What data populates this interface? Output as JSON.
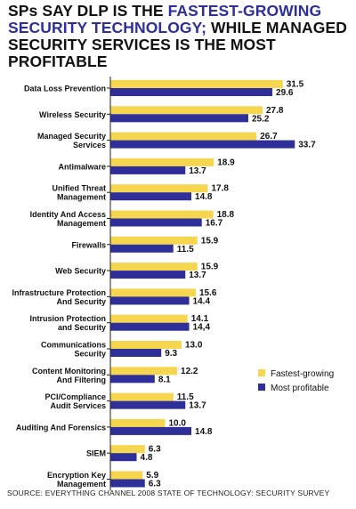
{
  "title": {
    "part1": "SPs SAY DLP IS THE",
    "part2": "FASTEST-GROWING SECURITY TECHNOLOGY;",
    "part3": "WHILE MANAGED SECURITY SERVICES IS THE MOST PROFITABLE"
  },
  "source": "SOURCE: EVERYTHING CHANNEL 2008 STATE OF TECHNOLOGY: SECURITY SURVEY",
  "colors": {
    "fastest": "#f6d54f",
    "profitable": "#2e2f99",
    "axis": "#222222",
    "text": "#111111"
  },
  "chart_data": {
    "type": "bar",
    "orientation": "horizontal",
    "title": "SPs SAY DLP IS THE FASTEST-GROWING SECURITY TECHNOLOGY; WHILE MANAGED SECURITY SERVICES IS THE MOST PROFITABLE",
    "categories": [
      [
        "Data Loss Prevention"
      ],
      [
        "Wireless Security"
      ],
      [
        "Managed Security",
        "Services"
      ],
      [
        "Antimalware"
      ],
      [
        "Unified Threat",
        "Management"
      ],
      [
        "Identity And Access",
        "Management"
      ],
      [
        "Firewalls"
      ],
      [
        "Web Security"
      ],
      [
        "Infrastructure Protection",
        "And Security"
      ],
      [
        "Intrusion Protection",
        "and Security"
      ],
      [
        "Communications",
        "Security"
      ],
      [
        "Content Monitoring",
        "And Filtering"
      ],
      [
        "PCI/Compliance",
        "Audit Services"
      ],
      [
        "Auditing And Forensics"
      ],
      [
        "SIEM"
      ],
      [
        "Encryption Key",
        "Management"
      ]
    ],
    "series": [
      {
        "name": "Fastest-growing",
        "values": [
          31.5,
          27.8,
          26.7,
          18.9,
          17.8,
          18.8,
          15.9,
          15.9,
          15.6,
          14.1,
          13.0,
          12.2,
          11.5,
          10.0,
          6.3,
          5.9
        ],
        "labels": [
          "31.5",
          "27.8",
          "26.7",
          "18.9",
          "17.8",
          "18.8",
          "15.9",
          "15.9",
          "15.6",
          "14.1",
          "13.0",
          "12.2",
          "11.5",
          "10.0",
          "6.3",
          "5.9"
        ]
      },
      {
        "name": "Most profitable",
        "values": [
          29.6,
          25.2,
          33.7,
          13.7,
          14.8,
          16.7,
          11.5,
          13.7,
          14.4,
          14.4,
          9.3,
          8.1,
          13.7,
          14.8,
          4.8,
          6.3
        ],
        "labels": [
          "29.6",
          "25.2",
          "33.7",
          "13.7",
          "14.8",
          "16.7",
          "11.5",
          "13.7",
          "14.4",
          "14,4",
          "9.3",
          "8.1",
          "13.7",
          "14.8",
          "4.8",
          "6.3"
        ]
      }
    ],
    "xlim": [
      0,
      36
    ],
    "grid": false,
    "legend": "right"
  }
}
